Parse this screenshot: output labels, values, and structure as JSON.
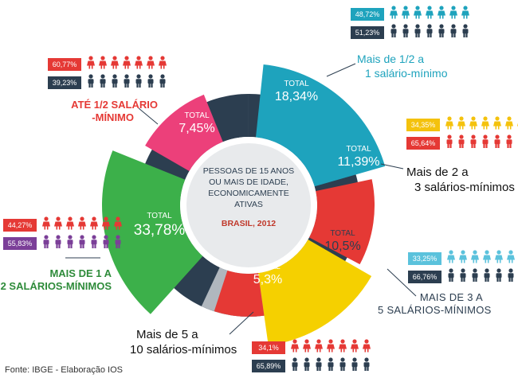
{
  "chart_data": {
    "type": "pie",
    "center": {
      "lines": [
        "PESSOAS DE 15 ANOS",
        "OU MAIS DE IDADE,",
        "ECONOMICAMENTE",
        "ATIVAS"
      ],
      "region_year": "BRASIL, 2012"
    },
    "total_label": "TOTAL",
    "slices": [
      {
        "key": "half_to_one",
        "label_line1": "Mais de 1/2 a",
        "label_line2": "1 salário-mínimo",
        "total": "18,34%",
        "value": 18.34,
        "color": "#1ea3bd",
        "women": "48,72%",
        "men": "51,23%",
        "women_color": "#1ea3bd",
        "men_color": "#2c3e50"
      },
      {
        "key": "two_to_three",
        "label_line1": "Mais de 2 a",
        "label_line2": "3 salários-mínimos",
        "total": "11,39%",
        "value": 11.39,
        "color": "#e53935",
        "women": "34,35%",
        "men": "65,64%",
        "women_color": "#f4c20d",
        "men_color": "#e53935"
      },
      {
        "key": "three_to_five",
        "label_line1": "MAIS DE 3 A",
        "label_line2": "5 SALÁRIOS-MÍNIMOS",
        "total": "10,5%",
        "value": 10.5,
        "color": "#f5d000",
        "women": "33,25%",
        "men": "66,76%",
        "women_color": "#5bc2dc",
        "men_color": "#2c3e50"
      },
      {
        "key": "five_to_ten",
        "label_line1": "Mais de 5 a",
        "label_line2": "10 salários-mínimos",
        "total": "5,3%",
        "value": 5.3,
        "color": "#e53935",
        "women": "34,1%",
        "men": "65,89%",
        "women_color": "#e53935",
        "men_color": "#2c3e50"
      },
      {
        "key": "one_to_two",
        "label_line1": "MAIS DE 1 A",
        "label_line2": "2 SALÁRIOS-MÍNIMOS",
        "total": "33,78%",
        "value": 33.78,
        "color": "#3cb04a",
        "women": "44,27%",
        "men": "55,83%",
        "women_color": "#e53935",
        "men_color": "#7b3f98"
      },
      {
        "key": "upto_half",
        "label_line1": "ATÉ 1/2 SALÁRIO",
        "label_line2": "-MÍNIMO",
        "total": "7,45%",
        "value": 7.45,
        "color": "#ec407a",
        "women": "60,77%",
        "men": "39,23%",
        "women_color": "#e53935",
        "men_color": "#2c3e50"
      }
    ],
    "colors": {
      "ring": "#2c3e50",
      "ring_light": "#b0b7be",
      "inner_ring": "#ffffff",
      "inner_fill": "#e8eaec"
    }
  },
  "source": "Fonte: IBGE - Elaboração IOS"
}
